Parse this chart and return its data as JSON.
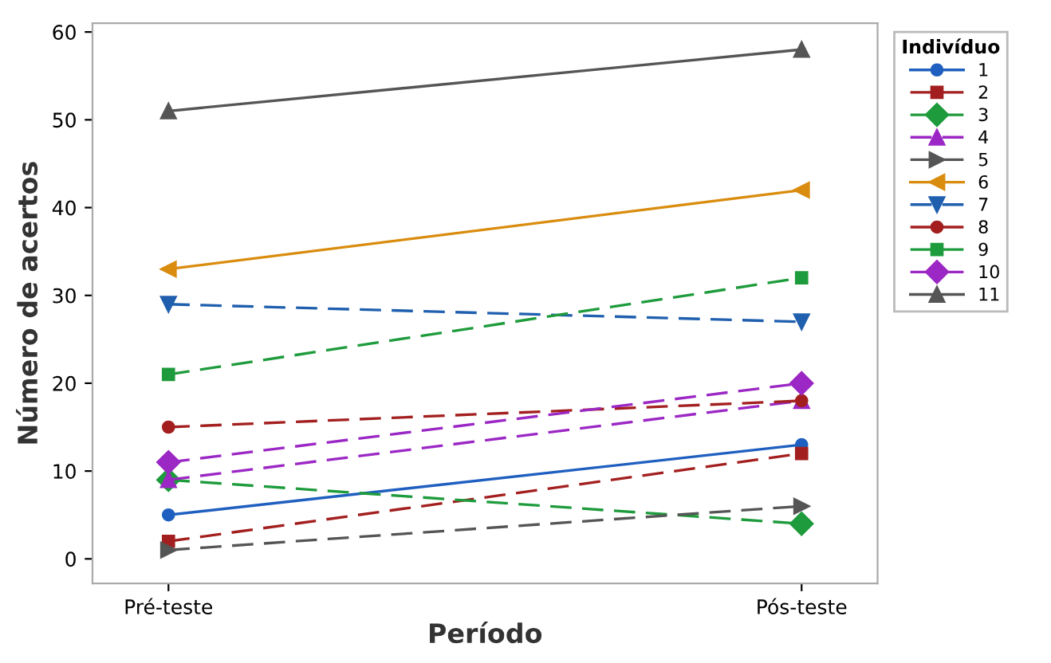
{
  "chart_data": {
    "type": "line",
    "xlabel": "Período",
    "ylabel": "Número de acertos",
    "legend_title": "Indivíduo",
    "categories": [
      "Pré-teste",
      "Pós-teste"
    ],
    "ylim": [
      -2.8,
      61
    ],
    "yticks": [
      0,
      10,
      20,
      30,
      40,
      50,
      60
    ],
    "grid": false,
    "legend": "top right",
    "series": [
      {
        "name": "1",
        "color": "#1f5fbf",
        "marker": "circle",
        "line_style": "solid",
        "values": [
          5,
          13
        ]
      },
      {
        "name": "2",
        "color": "#a31f1f",
        "marker": "square",
        "line_style": "dashed",
        "values": [
          2,
          12
        ]
      },
      {
        "name": "3",
        "color": "#1e9b3c",
        "marker": "diamond",
        "line_style": "dashed",
        "values": [
          9,
          4
        ]
      },
      {
        "name": "4",
        "color": "#9b27c4",
        "marker": "triangle",
        "line_style": "dashed",
        "values": [
          9,
          18
        ]
      },
      {
        "name": "5",
        "color": "#555555",
        "marker": "triangle_right",
        "line_style": "dashed",
        "values": [
          1,
          6
        ]
      },
      {
        "name": "6",
        "color": "#d98c0e",
        "marker": "triangle_left",
        "line_style": "solid",
        "values": [
          33,
          42
        ]
      },
      {
        "name": "7",
        "color": "#1f5fae",
        "marker": "triangle_down",
        "line_style": "dashed",
        "values": [
          29,
          27
        ]
      },
      {
        "name": "8",
        "color": "#a31f1f",
        "marker": "circle",
        "line_style": "dashed",
        "values": [
          15,
          18
        ]
      },
      {
        "name": "9",
        "color": "#1e9b3c",
        "marker": "square",
        "line_style": "dashed",
        "values": [
          21,
          32
        ]
      },
      {
        "name": "10",
        "color": "#9b27c4",
        "marker": "diamond",
        "line_style": "dashed",
        "values": [
          11,
          20
        ]
      },
      {
        "name": "11",
        "color": "#555555",
        "marker": "triangle",
        "line_style": "solid",
        "values": [
          51,
          58
        ]
      }
    ]
  }
}
